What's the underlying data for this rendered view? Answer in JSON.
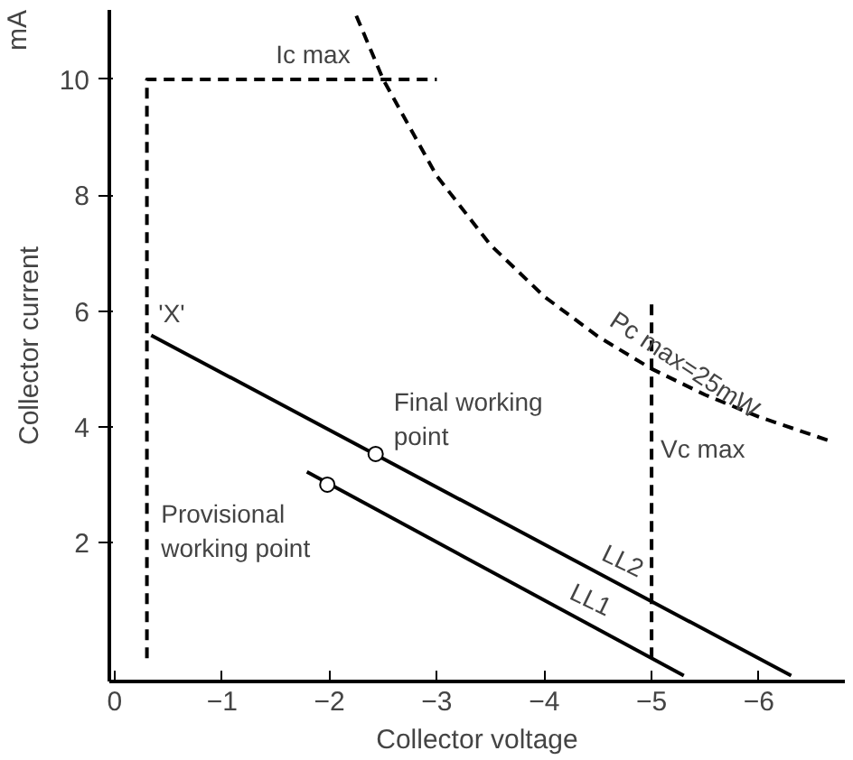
{
  "chart_data": {
    "type": "line",
    "xlabel": "Collector voltage",
    "ylabel": "Collector current",
    "xlim": [
      0.05,
      -6.8
    ],
    "ylim": [
      -0.4,
      11.2
    ],
    "xticks": [
      0,
      -1,
      -2,
      -3,
      -4,
      -5,
      -6
    ],
    "yticks": [
      2,
      4,
      6,
      8,
      10
    ],
    "grid": false,
    "series": [
      {
        "color": "#000000",
        "x": [
          -0.34,
          -6.3
        ],
        "values": [
          5.58,
          -0.3
        ]
      },
      {
        "color": "#000000",
        "x": [
          -1.79,
          -5.3
        ],
        "values": [
          3.22,
          -0.3
        ]
      },
      {
        "color": "#000000",
        "line_style": "dashed",
        "x": [
          -0.3,
          -0.3,
          -3.0
        ],
        "values": [
          0,
          10,
          10
        ]
      },
      {
        "color": "#000000",
        "line_style": "dashed",
        "x": [
          -5,
          -5
        ],
        "values": [
          0,
          6.2
        ]
      },
      {
        "color": "#000000",
        "line_style": "dashed",
        "x": [
          -2.25,
          -2.5,
          -3,
          -3.5,
          -4,
          -4.5,
          -5,
          -5.5,
          -6,
          -6.7
        ],
        "values": [
          11.1,
          10,
          8.33,
          7.14,
          6.25,
          5.56,
          5,
          4.55,
          4.17,
          3.73
        ]
      },
      {
        "type": "scatter",
        "color": "#000000",
        "marker": "circle",
        "x": [
          -2.43,
          -1.98
        ],
        "values": [
          3.53,
          3.0
        ]
      }
    ],
    "annotations": [
      "mA",
      {
        "text": "Ic max",
        "x": -1.5,
        "y": 10
      },
      {
        "text": "'X'",
        "x": -0.34,
        "y": 5.58
      },
      {
        "text": "Pc max=25mW",
        "x": -4.5,
        "y": 5.56
      },
      {
        "text": "Vc max",
        "x": -5,
        "y": 4
      },
      {
        "text": "Final working\npoint",
        "x": -2.43,
        "y": 3.53
      },
      {
        "text": "Provisional\nworking point",
        "x": -1.98,
        "y": 3.0
      },
      {
        "text": "LL2",
        "x": -4.5,
        "y": 1.47
      },
      {
        "text": "LL1",
        "x": -4.2,
        "y": 0.8
      }
    ]
  }
}
